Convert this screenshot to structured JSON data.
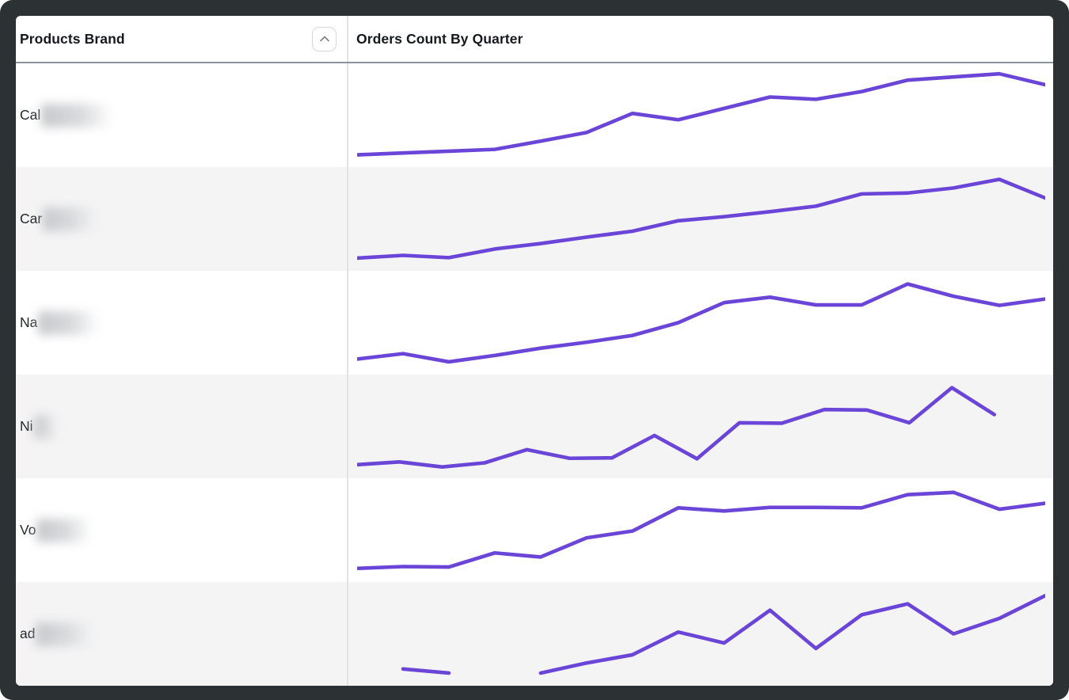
{
  "header": {
    "col1": "Products Brand",
    "col2": "Orders Count By Quarter"
  },
  "sort_button": {
    "icon": "chevron-up-icon",
    "state": "ascending"
  },
  "colors": {
    "line": "#6a45d8",
    "row_alt_bg": "#f4f4f5",
    "header_rule": "#8b949c",
    "column_divider": "#e1e2e4",
    "frame": "#2c3134",
    "header_text": "#15191d",
    "row_text": "#23272b"
  },
  "rows": [
    {
      "prefix": "Cal",
      "redacted": true,
      "blur_width": 90,
      "alt": false
    },
    {
      "prefix": "Car",
      "redacted": true,
      "blur_width": 68,
      "alt": true
    },
    {
      "prefix": "Na",
      "redacted": true,
      "blur_width": 77,
      "alt": false
    },
    {
      "prefix": "Ni",
      "redacted": true,
      "blur_width": 29,
      "alt": true
    },
    {
      "prefix": "Vo",
      "redacted": true,
      "blur_width": 69,
      "alt": false
    },
    {
      "prefix": "ad",
      "redacted": true,
      "blur_width": 72,
      "alt": true
    }
  ],
  "chart_data": {
    "type": "line",
    "title": "Orders Count By Quarter",
    "x": "sequential quarters (16 slots, unlabeled in UI)",
    "ylim": [
      0,
      100
    ],
    "units": "relative order count (0-100, estimated from sparkline pixels; no axis labels shown)",
    "grid": false,
    "legend": "none",
    "series": [
      {
        "name": "Cal (redacted)",
        "values": [
          6.5,
          8.5,
          10.5,
          12.5,
          21.5,
          31,
          52,
          45,
          57.5,
          70,
          67.5,
          76,
          88.5,
          92,
          95.5,
          83.5
        ]
      },
      {
        "name": "Car (redacted)",
        "values": [
          7,
          10,
          7.5,
          17,
          23,
          30,
          36.5,
          48,
          52.5,
          58,
          64,
          77.5,
          78.5,
          84,
          93.5,
          73
        ]
      },
      {
        "name": "Na (redacted)",
        "values": [
          10,
          16,
          7,
          14,
          22,
          28.5,
          36,
          50,
          72,
          78,
          69.5,
          69.5,
          92.5,
          79,
          69,
          76
        ]
      },
      {
        "name": "Ni (redacted)",
        "values": [
          8,
          11,
          5.5,
          10,
          24.5,
          15,
          15.5,
          40,
          14.5,
          54,
          53.5,
          68.5,
          68,
          54,
          92.5,
          63
        ],
        "x_span_pct": [
          0,
          92.6
        ]
      },
      {
        "name": "Vo (redacted)",
        "values": [
          8,
          10,
          9.5,
          25,
          20.5,
          41.5,
          49,
          74.5,
          71,
          75,
          75,
          74.5,
          89,
          91.5,
          73,
          79.5
        ]
      },
      {
        "name": "ad (redacted)",
        "values": [
          null,
          11.5,
          7,
          null,
          7,
          18,
          27,
          52,
          40,
          76,
          34,
          71,
          83,
          50,
          67,
          92
        ]
      }
    ]
  }
}
